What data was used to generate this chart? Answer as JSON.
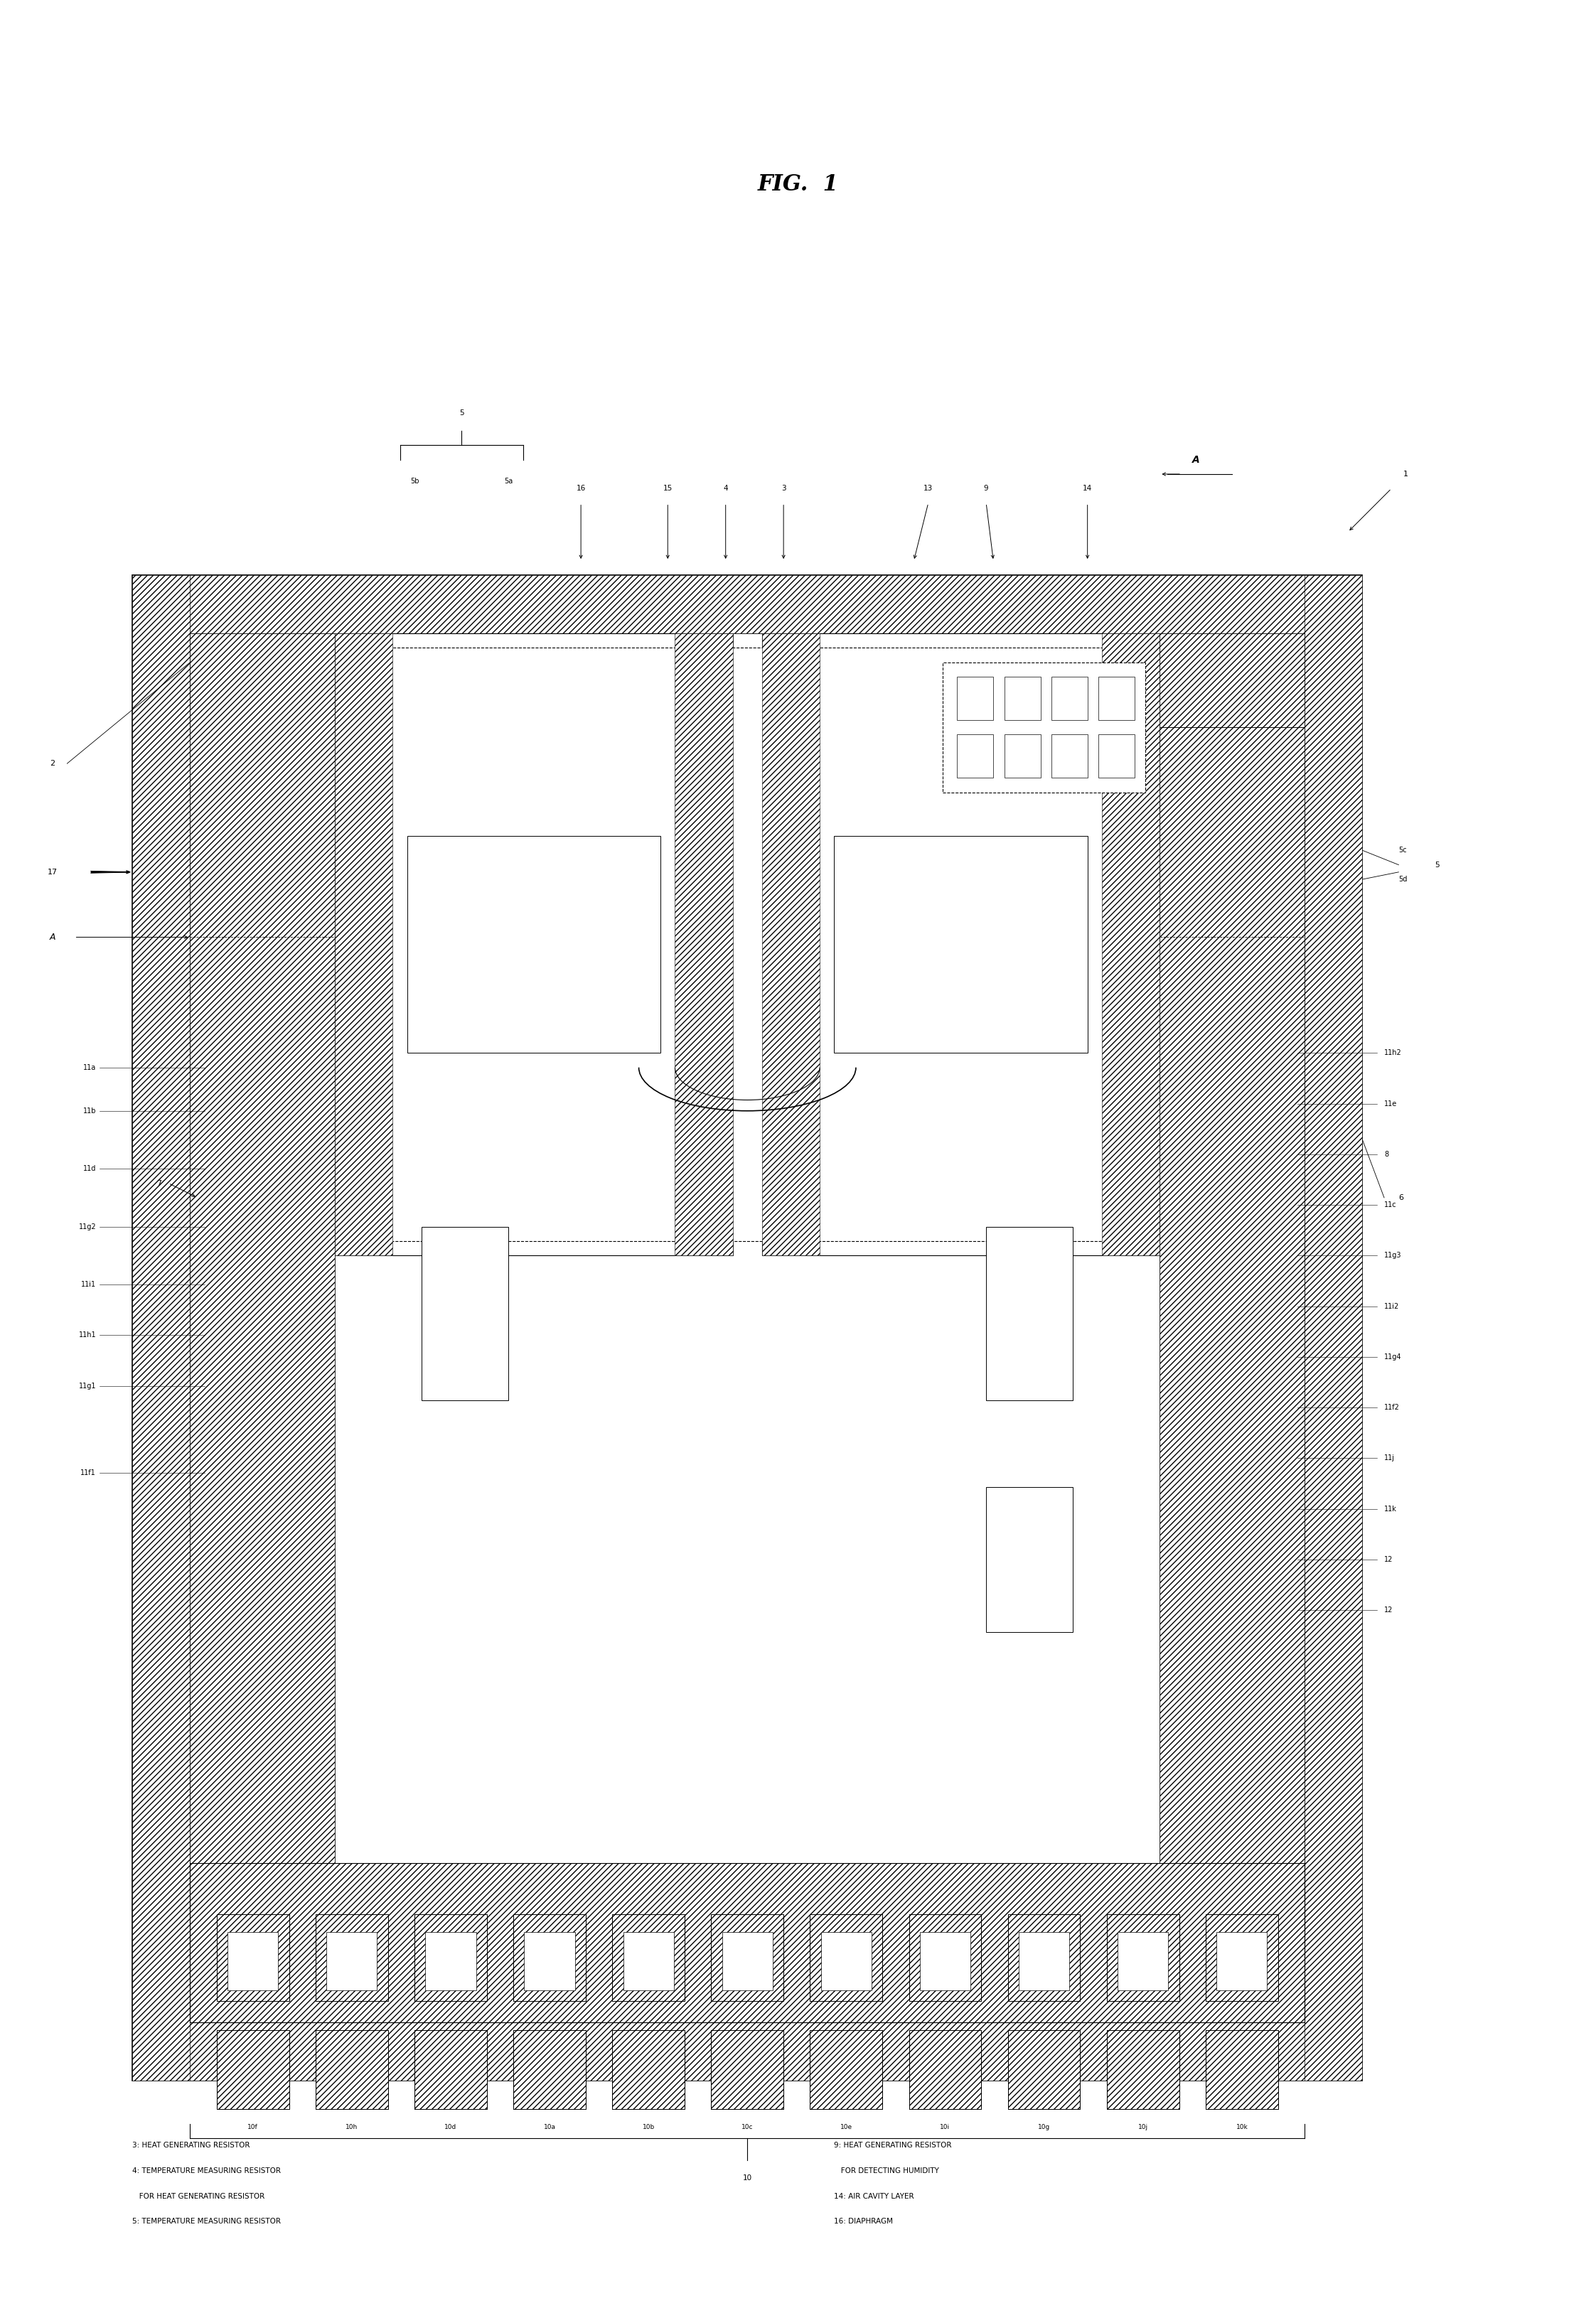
{
  "title": "FIG.  1",
  "bg": "#ffffff",
  "fw": 22.45,
  "fh": 32.68,
  "dpi": 100,
  "legend": [
    [
      "3: HEAT GENERATING RESISTOR",
      "9: HEAT GENERATING RESISTOR"
    ],
    [
      "4: TEMPERATURE MEASURING RESISTOR",
      "   FOR DETECTING HUMIDITY"
    ],
    [
      "   FOR HEAT GENERATING RESISTOR",
      "14: AIR CAVITY LAYER"
    ],
    [
      "5: TEMPERATURE MEASURING RESISTOR",
      "16: DIAPHRAGM"
    ]
  ]
}
